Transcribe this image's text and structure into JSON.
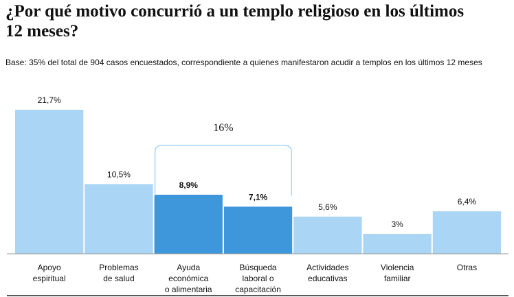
{
  "chart_data": {
    "type": "bar",
    "title": "¿Por qué motivo concurrió a un templo religioso en los últimos 12 meses?",
    "subtitle": "Base: 35% del total de 904 casos encuestados, correspondiente a quienes manifestaron acudir a templos en los últimos 12 meses",
    "categories": [
      "Apoyo\nespiritual",
      "Problemas\nde salud",
      "Ayuda\neconómica\no alimentaria",
      "Búsqueda\nlaboral o\ncapacitación",
      "Actividades\neducativas",
      "Violencia\nfamiliar",
      "Otras"
    ],
    "values": [
      21.7,
      10.5,
      8.9,
      7.1,
      5.6,
      3,
      6.4
    ],
    "value_labels": [
      "21,7%",
      "10,5%",
      "8,9%",
      "7,1%",
      "5,6%",
      "3%",
      "6,4%"
    ],
    "colors": [
      "#aad5f4",
      "#aad5f4",
      "#3f97db",
      "#3f97db",
      "#aad5f4",
      "#aad5f4",
      "#aad5f4"
    ],
    "annotation": "16%"
  }
}
